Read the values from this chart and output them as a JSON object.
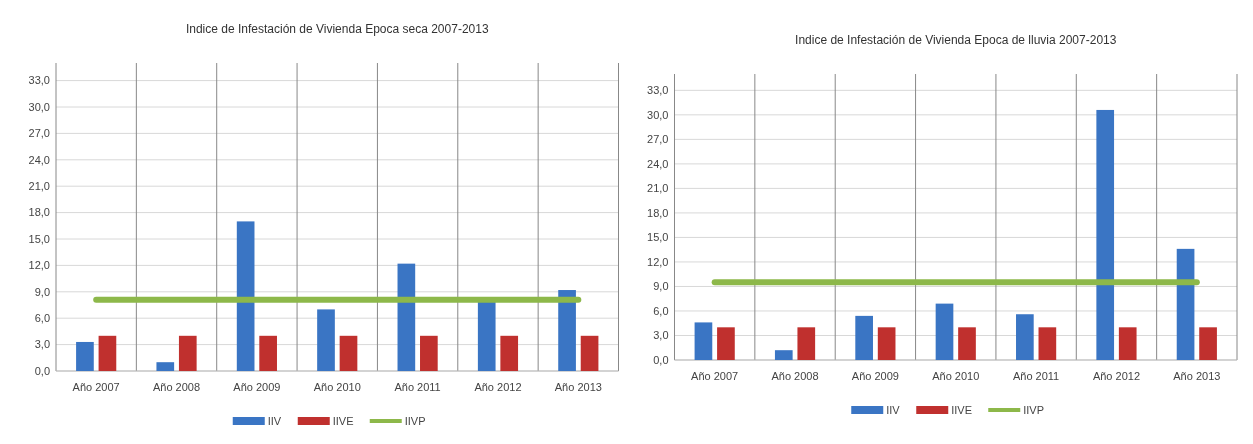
{
  "chart_data": [
    {
      "type": "bar",
      "title": "Indice de Infestación  de Vivienda Epoca seca 2007-2013",
      "categories": [
        "Año 2007",
        "Año 2008",
        "Año 2009",
        "Año 2010",
        "Año 2011",
        "Año 2012",
        "Año 2013"
      ],
      "series": [
        {
          "name": "IIV",
          "color": "#3a75c4",
          "values": [
            3.3,
            1.0,
            17.0,
            7.0,
            12.2,
            8.0,
            9.2
          ]
        },
        {
          "name": "IIVE",
          "color": "#c0302e",
          "values": [
            4.0,
            4.0,
            4.0,
            4.0,
            4.0,
            4.0,
            4.0
          ]
        },
        {
          "name": "IIVP",
          "type": "line",
          "color": "#8db84a",
          "values": [
            8.1,
            8.1,
            8.1,
            8.1,
            8.1,
            8.1,
            8.1
          ]
        }
      ],
      "ylim": [
        0,
        35
      ],
      "yticks": [
        {
          "value": 0,
          "label": "0,0"
        },
        {
          "value": 3,
          "label": "3,0"
        },
        {
          "value": 6,
          "label": "6,0"
        },
        {
          "value": 9,
          "label": "9,0"
        },
        {
          "value": 12,
          "label": "12,0"
        },
        {
          "value": 15,
          "label": "15,0"
        },
        {
          "value": 18,
          "label": "18,0"
        },
        {
          "value": 21,
          "label": "21,0"
        },
        {
          "value": 24,
          "label": "24,0"
        },
        {
          "value": 27,
          "label": "27,0"
        },
        {
          "value": 30,
          "label": "30,0"
        },
        {
          "value": 33,
          "label": "33,0"
        }
      ],
      "grid": true,
      "legend": "bottom"
    },
    {
      "type": "bar",
      "title": "Indice de Infestación  de Vivienda Epoca de lluvia 2007-2013",
      "categories": [
        "Año 2007",
        "Año 2008",
        "Año 2009",
        "Año 2010",
        "Año 2011",
        "Año 2012",
        "Año 2013"
      ],
      "series": [
        {
          "name": "IIV",
          "color": "#3a75c4",
          "values": [
            4.6,
            1.2,
            5.4,
            6.9,
            5.6,
            30.6,
            13.6
          ]
        },
        {
          "name": "IIVE",
          "color": "#c0302e",
          "values": [
            4.0,
            4.0,
            4.0,
            4.0,
            4.0,
            4.0,
            4.0
          ]
        },
        {
          "name": "IIVP",
          "type": "line",
          "color": "#8db84a",
          "values": [
            9.5,
            9.5,
            9.5,
            9.5,
            9.5,
            9.5,
            9.5
          ]
        }
      ],
      "ylim": [
        0,
        35
      ],
      "yticks": [
        {
          "value": 0,
          "label": "0,0"
        },
        {
          "value": 3,
          "label": "3,0"
        },
        {
          "value": 6,
          "label": "6,0"
        },
        {
          "value": 9,
          "label": "9,0"
        },
        {
          "value": 12,
          "label": "12,0"
        },
        {
          "value": 15,
          "label": "15,0"
        },
        {
          "value": 18,
          "label": "18,0"
        },
        {
          "value": 21,
          "label": "21,0"
        },
        {
          "value": 24,
          "label": "24,0"
        },
        {
          "value": 27,
          "label": "27,0"
        },
        {
          "value": 30,
          "label": "30,0"
        },
        {
          "value": 33,
          "label": "33,0"
        }
      ],
      "grid": true,
      "legend": "bottom"
    }
  ]
}
